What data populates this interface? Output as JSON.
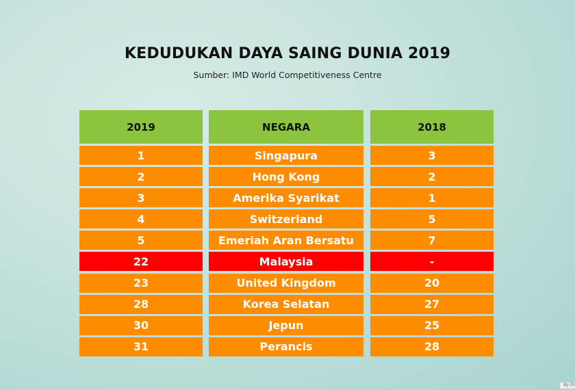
{
  "title": "KEDUDUKAN DAYA SAING DUNIA 2019",
  "subtitle": "Sumber: IMD World Competitiveness Centre",
  "colors": {
    "header": "#8bc43f",
    "row": "#fe8c00",
    "highlight": "#fe0000"
  },
  "table": {
    "headers": [
      "2019",
      "NEGARA",
      "2018"
    ],
    "rows": [
      {
        "rank_2019": "1",
        "country": "Singapura",
        "rank_2018": "3",
        "highlight": false
      },
      {
        "rank_2019": "2",
        "country": "Hong Kong",
        "rank_2018": "2",
        "highlight": false
      },
      {
        "rank_2019": "3",
        "country": "Amerika Syarikat",
        "rank_2018": "1",
        "highlight": false
      },
      {
        "rank_2019": "4",
        "country": "Switzerland",
        "rank_2018": "5",
        "highlight": false
      },
      {
        "rank_2019": "5",
        "country": "Emeriah Aran Bersatu",
        "rank_2018": "7",
        "highlight": false
      },
      {
        "rank_2019": "22",
        "country": "Malaysia",
        "rank_2018": "-",
        "highlight": true
      },
      {
        "rank_2019": "23",
        "country": "United Kingdom",
        "rank_2018": "20",
        "highlight": false
      },
      {
        "rank_2019": "28",
        "country": "Korea Selatan",
        "rank_2018": "27",
        "highlight": false
      },
      {
        "rank_2019": "30",
        "country": "Jepun",
        "rank_2018": "25",
        "highlight": false
      },
      {
        "rank_2019": "31",
        "country": "Perancis",
        "rank_2018": "28",
        "highlight": false
      }
    ]
  },
  "credit": "By Dr"
}
